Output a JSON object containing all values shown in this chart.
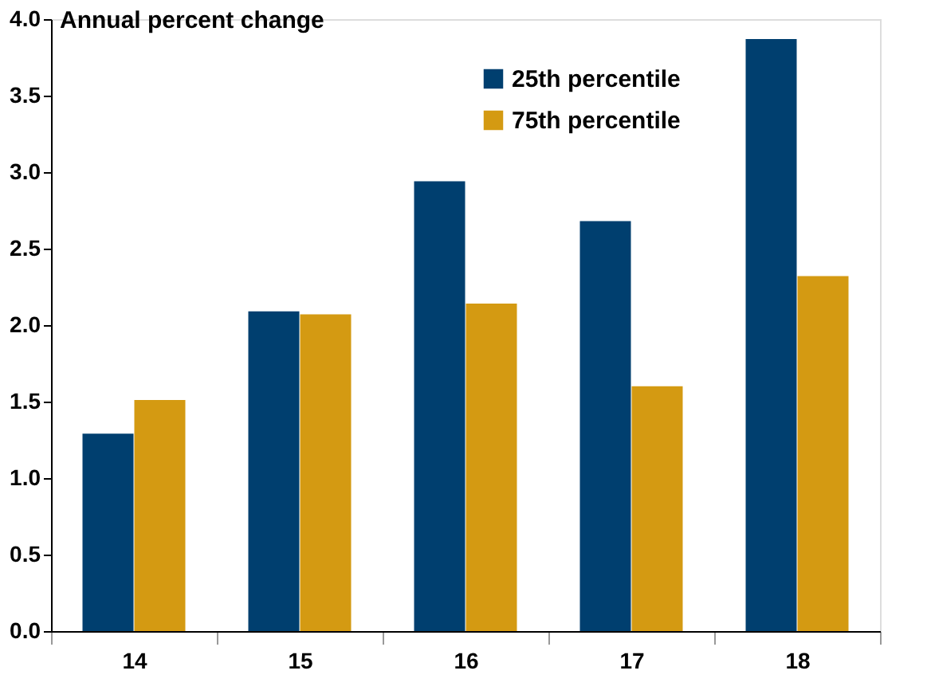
{
  "chart_data": {
    "type": "bar",
    "ylabel": "Annual percent change",
    "categories": [
      "14",
      "15",
      "16",
      "17",
      "18"
    ],
    "series": [
      {
        "name": "25th percentile",
        "color": "#003f6f",
        "values": [
          1.29,
          2.09,
          2.94,
          2.68,
          3.87
        ]
      },
      {
        "name": "75th percentile",
        "color": "#d49a12",
        "values": [
          1.51,
          2.07,
          2.14,
          1.6,
          2.32
        ]
      }
    ],
    "ylim": [
      0,
      4
    ],
    "yticks": [
      {
        "value": 0,
        "label": "0.0"
      },
      {
        "value": 0.5,
        "label": "0.5"
      },
      {
        "value": 1,
        "label": "1.0"
      },
      {
        "value": 1.5,
        "label": "1.5"
      },
      {
        "value": 2,
        "label": "2.0"
      },
      {
        "value": 2.5,
        "label": "2.5"
      },
      {
        "value": 3,
        "label": "3.0"
      },
      {
        "value": 3.5,
        "label": "3.5"
      },
      {
        "value": 4,
        "label": "4.0"
      }
    ],
    "grid": false,
    "legend": "top right"
  }
}
